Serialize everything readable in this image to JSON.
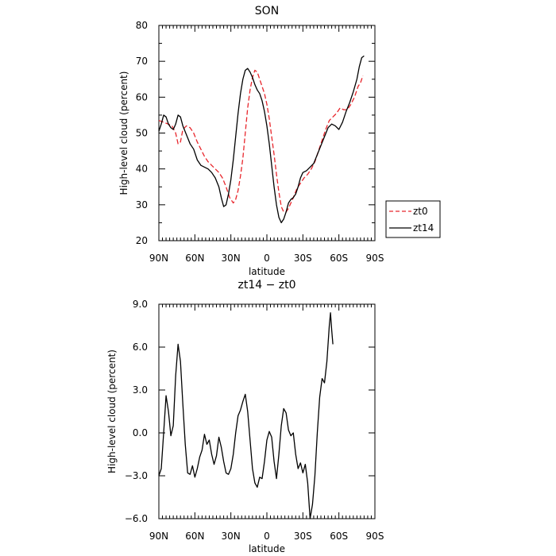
{
  "chart_data": [
    {
      "type": "line",
      "title": "SON",
      "xlabel": "latitude",
      "ylabel": "High-level cloud (percent)",
      "xlim": [
        90,
        -90
      ],
      "ylim": [
        20,
        80
      ],
      "x_ticks": [
        {
          "value": 90,
          "label": "90N"
        },
        {
          "value": 60,
          "label": "60N"
        },
        {
          "value": 30,
          "label": "30N"
        },
        {
          "value": 0,
          "label": "0"
        },
        {
          "value": -30,
          "label": "30S"
        },
        {
          "value": -60,
          "label": "60S"
        },
        {
          "value": -90,
          "label": "90S"
        }
      ],
      "y_ticks": [
        {
          "value": 20,
          "label": "20"
        },
        {
          "value": 30,
          "label": "30"
        },
        {
          "value": 40,
          "label": "40"
        },
        {
          "value": 50,
          "label": "50"
        },
        {
          "value": 60,
          "label": "60"
        },
        {
          "value": 70,
          "label": "70"
        },
        {
          "value": 80,
          "label": "80"
        }
      ],
      "legend_position": "right",
      "series": [
        {
          "name": "zt0",
          "color": "#e8262c",
          "dash": "dashed",
          "points": [
            [
              90,
              53.5
            ],
            [
              86,
              53
            ],
            [
              82,
              52.5
            ],
            [
              79,
              52
            ],
            [
              76,
              50
            ],
            [
              74,
              47
            ],
            [
              72,
              47.5
            ],
            [
              70,
              51
            ],
            [
              67,
              52
            ],
            [
              64,
              51.5
            ],
            [
              61,
              50
            ],
            [
              58,
              47.5
            ],
            [
              55,
              45.5
            ],
            [
              52,
              43.5
            ],
            [
              49,
              42
            ],
            [
              46,
              41
            ],
            [
              43,
              40
            ],
            [
              40,
              39
            ],
            [
              37,
              37.5
            ],
            [
              34,
              35
            ],
            [
              31,
              32
            ],
            [
              28,
              30.5
            ],
            [
              26,
              31.5
            ],
            [
              24,
              34
            ],
            [
              22,
              38
            ],
            [
              20,
              43
            ],
            [
              18,
              50
            ],
            [
              16,
              57
            ],
            [
              14,
              62
            ],
            [
              12,
              65.5
            ],
            [
              10,
              67.5
            ],
            [
              8,
              67
            ],
            [
              6,
              65
            ],
            [
              4,
              63
            ],
            [
              2,
              61
            ],
            [
              0,
              58
            ],
            [
              -2,
              54
            ],
            [
              -4,
              49
            ],
            [
              -6,
              44
            ],
            [
              -8,
              38.5
            ],
            [
              -10,
              33.5
            ],
            [
              -12,
              29.5
            ],
            [
              -14,
              28
            ],
            [
              -16,
              28
            ],
            [
              -18,
              29
            ],
            [
              -20,
              30.5
            ],
            [
              -22,
              32
            ],
            [
              -25,
              34.5
            ],
            [
              -28,
              36
            ],
            [
              -31,
              37.5
            ],
            [
              -34,
              38.5
            ],
            [
              -37,
              40
            ],
            [
              -40,
              42
            ],
            [
              -43,
              45
            ],
            [
              -46,
              48
            ],
            [
              -49,
              51
            ],
            [
              -52,
              53.5
            ],
            [
              -55,
              54.5
            ],
            [
              -58,
              55.5
            ],
            [
              -61,
              57
            ],
            [
              -64,
              56.5
            ],
            [
              -67,
              56.5
            ],
            [
              -70,
              58
            ],
            [
              -73,
              60
            ],
            [
              -76,
              63
            ],
            [
              -78,
              64
            ],
            [
              -80,
              66
            ]
          ]
        },
        {
          "name": "zt14",
          "color": "#000000",
          "dash": "solid",
          "points": [
            [
              90,
              50.5
            ],
            [
              88,
              52.5
            ],
            [
              86,
              55
            ],
            [
              84,
              54.5
            ],
            [
              82,
              52.5
            ],
            [
              80,
              51.5
            ],
            [
              78,
              51
            ],
            [
              76,
              52.5
            ],
            [
              74,
              55
            ],
            [
              72,
              54.5
            ],
            [
              70,
              52
            ],
            [
              67,
              49.5
            ],
            [
              64,
              47
            ],
            [
              61,
              45.5
            ],
            [
              58,
              42.5
            ],
            [
              55,
              41
            ],
            [
              52,
              40.5
            ],
            [
              49,
              40
            ],
            [
              46,
              39
            ],
            [
              43,
              37.5
            ],
            [
              40,
              35
            ],
            [
              38,
              32
            ],
            [
              36,
              29.5
            ],
            [
              34,
              30
            ],
            [
              32,
              33
            ],
            [
              30,
              37
            ],
            [
              28,
              42.5
            ],
            [
              26,
              49
            ],
            [
              24,
              55.5
            ],
            [
              22,
              61
            ],
            [
              20,
              65
            ],
            [
              18,
              67.5
            ],
            [
              16,
              68
            ],
            [
              14,
              67
            ],
            [
              12,
              65.5
            ],
            [
              10,
              63.5
            ],
            [
              8,
              62
            ],
            [
              6,
              61
            ],
            [
              4,
              59
            ],
            [
              2,
              56
            ],
            [
              0,
              52
            ],
            [
              -2,
              47
            ],
            [
              -4,
              41
            ],
            [
              -6,
              35
            ],
            [
              -8,
              30
            ],
            [
              -10,
              26.5
            ],
            [
              -12,
              25
            ],
            [
              -14,
              26
            ],
            [
              -16,
              28
            ],
            [
              -18,
              30.5
            ],
            [
              -20,
              31.5
            ],
            [
              -22,
              32
            ],
            [
              -24,
              33
            ],
            [
              -26,
              35
            ],
            [
              -28,
              37.5
            ],
            [
              -30,
              39
            ],
            [
              -33,
              39.5
            ],
            [
              -36,
              40.5
            ],
            [
              -39,
              41.5
            ],
            [
              -42,
              44
            ],
            [
              -45,
              46.5
            ],
            [
              -48,
              49
            ],
            [
              -51,
              51.5
            ],
            [
              -54,
              52.5
            ],
            [
              -57,
              52
            ],
            [
              -60,
              51
            ],
            [
              -63,
              53
            ],
            [
              -66,
              56
            ],
            [
              -69,
              58.5
            ],
            [
              -72,
              61.5
            ],
            [
              -75,
              65
            ],
            [
              -77,
              68.5
            ],
            [
              -79,
              71
            ],
            [
              -81,
              71.5
            ]
          ]
        }
      ]
    },
    {
      "type": "line",
      "title": "zt14 − zt0",
      "xlabel": "latitude",
      "ylabel": "High-level cloud (percent)",
      "xlim": [
        90,
        -90
      ],
      "ylim": [
        -6,
        9
      ],
      "x_ticks": [
        {
          "value": 90,
          "label": "90N"
        },
        {
          "value": 60,
          "label": "60N"
        },
        {
          "value": 30,
          "label": "30N"
        },
        {
          "value": 0,
          "label": "0"
        },
        {
          "value": -30,
          "label": "30S"
        },
        {
          "value": -60,
          "label": "60S"
        },
        {
          "value": -90,
          "label": "90S"
        }
      ],
      "y_ticks": [
        {
          "value": -6,
          "label": "−6.0"
        },
        {
          "value": -3,
          "label": "−3.0"
        },
        {
          "value": 0,
          "label": "0.0"
        },
        {
          "value": 3,
          "label": "3.0"
        },
        {
          "value": 6,
          "label": "6.0"
        },
        {
          "value": 9,
          "label": "9.0"
        }
      ],
      "series": [
        {
          "color": "#000000",
          "dash": "solid",
          "points": [
            [
              90,
              -3
            ],
            [
              88,
              -2.5
            ],
            [
              86,
              0
            ],
            [
              84,
              2.6
            ],
            [
              82,
              1.5
            ],
            [
              80,
              -0.2
            ],
            [
              78,
              0.5
            ],
            [
              76,
              4
            ],
            [
              74,
              6.2
            ],
            [
              72,
              5
            ],
            [
              70,
              2
            ],
            [
              68,
              -0.8
            ],
            [
              66,
              -2.8
            ],
            [
              64,
              -2.9
            ],
            [
              62,
              -2.3
            ],
            [
              60,
              -3.1
            ],
            [
              58,
              -2.5
            ],
            [
              56,
              -1.7
            ],
            [
              54,
              -1.2
            ],
            [
              52,
              -0.1
            ],
            [
              50,
              -0.8
            ],
            [
              48,
              -0.5
            ],
            [
              46,
              -1.5
            ],
            [
              44,
              -2.2
            ],
            [
              42,
              -1.6
            ],
            [
              40,
              -0.3
            ],
            [
              38,
              -1
            ],
            [
              36,
              -2
            ],
            [
              34,
              -2.8
            ],
            [
              32,
              -2.9
            ],
            [
              30,
              -2.5
            ],
            [
              28,
              -1.5
            ],
            [
              26,
              0
            ],
            [
              24,
              1.2
            ],
            [
              22,
              1.6
            ],
            [
              20,
              2.2
            ],
            [
              18,
              2.7
            ],
            [
              16,
              1.5
            ],
            [
              14,
              -0.5
            ],
            [
              12,
              -2.5
            ],
            [
              10,
              -3.5
            ],
            [
              8,
              -3.8
            ],
            [
              6,
              -3.1
            ],
            [
              4,
              -3.2
            ],
            [
              2,
              -2
            ],
            [
              0,
              -0.5
            ],
            [
              -2,
              0.1
            ],
            [
              -4,
              -0.3
            ],
            [
              -6,
              -2
            ],
            [
              -8,
              -3.2
            ],
            [
              -10,
              -1.5
            ],
            [
              -12,
              0.5
            ],
            [
              -14,
              1.7
            ],
            [
              -16,
              1.4
            ],
            [
              -18,
              0.2
            ],
            [
              -20,
              -0.2
            ],
            [
              -22,
              0
            ],
            [
              -24,
              -1.5
            ],
            [
              -26,
              -2.5
            ],
            [
              -28,
              -2.1
            ],
            [
              -30,
              -2.8
            ],
            [
              -32,
              -2.2
            ],
            [
              -34,
              -3.5
            ],
            [
              -36,
              -6
            ],
            [
              -38,
              -5
            ],
            [
              -40,
              -3
            ],
            [
              -42,
              0
            ],
            [
              -44,
              2.5
            ],
            [
              -46,
              3.8
            ],
            [
              -48,
              3.5
            ],
            [
              -50,
              5
            ],
            [
              -52,
              7.5
            ],
            [
              -53,
              8.4
            ],
            [
              -54,
              7.2
            ],
            [
              -55,
              6.2
            ]
          ]
        }
      ]
    }
  ]
}
